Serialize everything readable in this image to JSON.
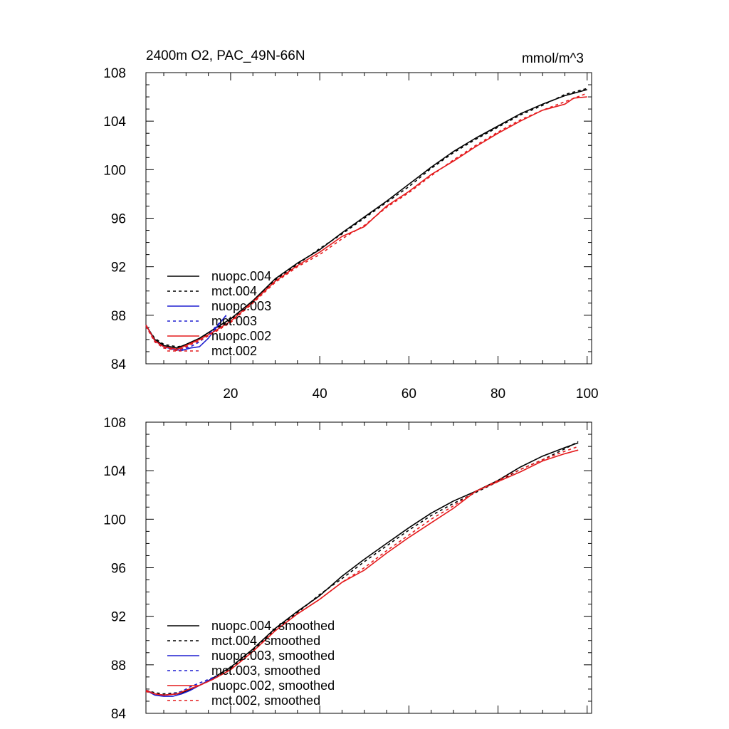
{
  "chart_data": [
    {
      "type": "line",
      "title": "2400m O2, PAC_49N-66N",
      "units_label": "mmol/m^3",
      "xlabel": "",
      "ylabel": "",
      "xlim": [
        1,
        101
      ],
      "ylim": [
        84,
        108
      ],
      "x_ticks": [
        20,
        40,
        60,
        80,
        100
      ],
      "x_tick_labels": [
        "20",
        "40",
        "60",
        "80",
        "100"
      ],
      "y_ticks": [
        84,
        88,
        92,
        96,
        100,
        104,
        108
      ],
      "y_tick_labels": [
        "84",
        "88",
        "92",
        "96",
        "100",
        "104",
        "108"
      ],
      "grid": false,
      "legend_position": "bottom-left",
      "series": [
        {
          "name": "nuopc.004",
          "color": "#000000",
          "dash": "solid",
          "x": [
            1,
            3,
            5,
            8,
            10,
            13,
            16,
            20,
            25,
            30,
            35,
            40,
            45,
            50,
            55,
            60,
            65,
            70,
            75,
            80,
            85,
            90,
            95,
            100
          ],
          "y": [
            87.2,
            86.0,
            85.5,
            85.3,
            85.6,
            86.1,
            86.8,
            87.7,
            89.2,
            91.0,
            92.3,
            93.4,
            94.8,
            96.1,
            97.4,
            98.8,
            100.2,
            101.5,
            102.6,
            103.6,
            104.6,
            105.4,
            106.1,
            106.6
          ]
        },
        {
          "name": "mct.004",
          "color": "#000000",
          "dash": "dashed",
          "x": [
            1,
            3,
            5,
            8,
            10,
            13,
            16,
            20,
            25,
            30,
            35,
            40,
            45,
            50,
            55,
            60,
            65,
            70,
            75,
            80,
            85,
            90,
            95,
            100
          ],
          "y": [
            87.1,
            86.1,
            85.6,
            85.4,
            85.5,
            86.0,
            86.7,
            87.6,
            89.1,
            90.9,
            92.2,
            93.5,
            94.7,
            96.0,
            97.3,
            98.6,
            100.1,
            101.4,
            102.5,
            103.5,
            104.5,
            105.3,
            106.2,
            106.7
          ]
        },
        {
          "name": "nuopc.003",
          "color": "#1f1fd0",
          "dash": "solid",
          "x": [
            1,
            3,
            5,
            7,
            9,
            11,
            13,
            15,
            17,
            19
          ],
          "y": [
            87.2,
            85.9,
            85.4,
            85.2,
            85.1,
            85.3,
            85.4,
            86.1,
            87.1,
            88.0
          ]
        },
        {
          "name": "mct.003",
          "color": "#1f1fd0",
          "dash": "dashed",
          "x": [
            1,
            3,
            5,
            7,
            9,
            11,
            13,
            15,
            17,
            19
          ],
          "y": [
            87.1,
            85.8,
            85.3,
            85.2,
            85.2,
            85.4,
            85.8,
            86.4,
            87.2,
            87.9
          ]
        },
        {
          "name": "nuopc.002",
          "color": "#e41a1c",
          "dash": "solid",
          "x": [
            1,
            3,
            5,
            8,
            10,
            13,
            16,
            20,
            25,
            30,
            35,
            40,
            45,
            50,
            55,
            60,
            65,
            70,
            75,
            80,
            85,
            90,
            95,
            97,
            100
          ],
          "y": [
            87.2,
            85.9,
            85.4,
            85.2,
            85.5,
            86.0,
            86.6,
            87.5,
            89.1,
            90.8,
            92.1,
            93.2,
            94.5,
            95.3,
            97.0,
            98.2,
            99.6,
            100.7,
            101.9,
            103.0,
            104.0,
            104.9,
            105.4,
            105.9,
            106.0
          ]
        },
        {
          "name": "mct.002",
          "color": "#e41a1c",
          "dash": "dashed",
          "x": [
            1,
            3,
            5,
            8,
            10,
            13,
            16,
            20,
            25,
            30,
            35,
            40,
            45,
            50,
            55,
            60,
            65,
            70,
            75,
            80,
            85,
            90,
            95,
            100
          ],
          "y": [
            87.1,
            85.8,
            85.3,
            85.1,
            85.4,
            85.9,
            86.5,
            87.4,
            89.0,
            90.7,
            92.0,
            93.0,
            94.3,
            95.4,
            96.9,
            98.1,
            99.5,
            100.8,
            102.0,
            103.1,
            104.1,
            104.9,
            105.6,
            106.3
          ]
        }
      ]
    },
    {
      "type": "line",
      "title": "",
      "xlabel": "",
      "ylabel": "",
      "xlim": [
        1,
        101
      ],
      "ylim": [
        84,
        108
      ],
      "x_ticks": [
        20,
        40,
        60,
        80,
        100
      ],
      "y_ticks": [
        84,
        88,
        92,
        96,
        100,
        104,
        108
      ],
      "y_tick_labels": [
        "84",
        "88",
        "92",
        "96",
        "100",
        "104",
        "108"
      ],
      "grid": false,
      "legend_position": "bottom-left",
      "series": [
        {
          "name": "nuopc.004, smoothed",
          "color": "#000000",
          "dash": "solid",
          "x": [
            1,
            3,
            5,
            8,
            10,
            13,
            16,
            20,
            25,
            30,
            35,
            40,
            45,
            50,
            55,
            60,
            65,
            70,
            75,
            80,
            85,
            90,
            95,
            98
          ],
          "y": [
            85.9,
            85.6,
            85.5,
            85.6,
            85.8,
            86.3,
            86.9,
            87.8,
            89.3,
            91.0,
            92.4,
            93.7,
            95.3,
            96.7,
            98.0,
            99.3,
            100.5,
            101.5,
            102.3,
            103.2,
            104.3,
            105.2,
            105.9,
            106.3
          ]
        },
        {
          "name": "mct.004, smoothed",
          "color": "#000000",
          "dash": "dashed",
          "x": [
            1,
            3,
            5,
            8,
            10,
            13,
            16,
            20,
            25,
            30,
            35,
            40,
            45,
            50,
            55,
            60,
            65,
            70,
            75,
            80,
            85,
            90,
            95,
            98
          ],
          "y": [
            85.9,
            85.7,
            85.6,
            85.7,
            85.9,
            86.3,
            86.9,
            87.7,
            89.2,
            90.9,
            92.3,
            93.8,
            95.1,
            96.5,
            97.8,
            99.1,
            100.3,
            101.3,
            102.2,
            103.1,
            104.1,
            104.9,
            105.8,
            106.4
          ]
        },
        {
          "name": "nuopc.003, smoothed",
          "color": "#1f1fd0",
          "dash": "solid",
          "x": [
            1,
            3,
            5,
            7,
            9,
            11,
            13,
            15,
            17
          ],
          "y": [
            85.9,
            85.5,
            85.4,
            85.4,
            85.6,
            85.9,
            86.3,
            86.7,
            87.0
          ]
        },
        {
          "name": "mct.003, smoothed",
          "color": "#1f1fd0",
          "dash": "dashed",
          "x": [
            1,
            3,
            5,
            7,
            9,
            11,
            13,
            15,
            17
          ],
          "y": [
            85.9,
            85.6,
            85.5,
            85.6,
            85.8,
            86.2,
            86.5,
            86.8,
            87.1
          ]
        },
        {
          "name": "nuopc.002, smoothed",
          "color": "#e41a1c",
          "dash": "solid",
          "x": [
            1,
            3,
            5,
            8,
            10,
            13,
            16,
            20,
            25,
            30,
            35,
            40,
            45,
            50,
            55,
            60,
            65,
            70,
            75,
            80,
            85,
            90,
            95,
            98
          ],
          "y": [
            85.9,
            85.6,
            85.5,
            85.6,
            85.9,
            86.3,
            86.8,
            87.6,
            89.1,
            90.8,
            92.2,
            93.4,
            94.8,
            95.8,
            97.2,
            98.5,
            99.7,
            100.9,
            102.3,
            103.1,
            103.9,
            104.8,
            105.4,
            105.7
          ]
        },
        {
          "name": "mct.002, smoothed",
          "color": "#e41a1c",
          "dash": "dashed",
          "x": [
            1,
            3,
            5,
            8,
            10,
            13,
            16,
            20,
            25,
            30,
            35,
            40,
            45,
            50,
            55,
            60,
            65,
            70,
            75,
            80,
            85,
            90,
            95,
            98
          ],
          "y": [
            85.8,
            85.6,
            85.5,
            85.6,
            85.9,
            86.3,
            86.8,
            87.6,
            89.1,
            90.8,
            92.2,
            93.4,
            94.8,
            96.0,
            97.4,
            98.7,
            100.0,
            101.1,
            102.3,
            103.2,
            104.1,
            104.9,
            105.6,
            106.0
          ]
        }
      ]
    }
  ]
}
